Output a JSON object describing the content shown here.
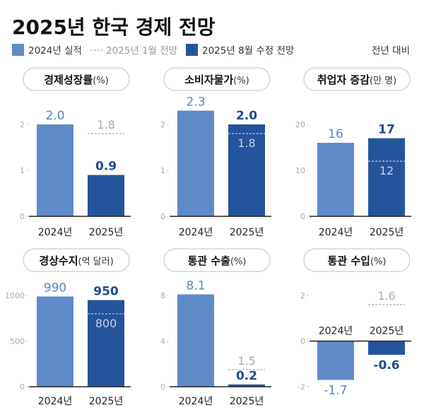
{
  "title": "2025년 한국 경제 전망",
  "legend": {
    "actual": "2024년 실적",
    "jan_forecast": "2025년 1월 전망",
    "aug_forecast": "2025년 8월 수정 전망",
    "note": "전년 대비"
  },
  "colors": {
    "actual": "#5f8bc8",
    "revised": "#24549b",
    "actual_label": "#5b84c0",
    "revised_label": "#1f4a8c",
    "forecast": "#a9a9a9",
    "axis": "#222222"
  },
  "chart_data": [
    {
      "type": "bar",
      "title": "경제성장률",
      "unit": "(%)",
      "categories": [
        "2024년",
        "2025년"
      ],
      "values": [
        2.0,
        0.9
      ],
      "jan_forecast": 1.8,
      "value_labels": [
        "2.0",
        "0.9"
      ],
      "forecast_label": "1.8",
      "ylim": [
        0,
        2
      ],
      "ticks": [
        0,
        1,
        2
      ],
      "tick_labels": [
        "0",
        "1",
        "2"
      ]
    },
    {
      "type": "bar",
      "title": "소비자물가",
      "unit": "(%)",
      "categories": [
        "2024년",
        "2025년"
      ],
      "values": [
        2.3,
        2.0
      ],
      "jan_forecast": 1.8,
      "value_labels": [
        "2.3",
        "2.0"
      ],
      "forecast_label": "1.8",
      "ylim": [
        0,
        2
      ],
      "ticks": [
        0,
        1,
        2
      ],
      "tick_labels": [
        "0",
        "1",
        "2"
      ]
    },
    {
      "type": "bar",
      "title": "취업자 증감",
      "unit": "(만 명)",
      "categories": [
        "2024년",
        "2025년"
      ],
      "values": [
        16,
        17
      ],
      "jan_forecast": 12,
      "value_labels": [
        "16",
        "17"
      ],
      "forecast_label": "12",
      "ylim": [
        0,
        20
      ],
      "ticks": [
        0,
        10,
        20
      ],
      "tick_labels": [
        "0",
        "10",
        "20"
      ]
    },
    {
      "type": "bar",
      "title": "경상수지",
      "unit": "(억 달러)",
      "categories": [
        "2024년",
        "2025년"
      ],
      "values": [
        990,
        950
      ],
      "jan_forecast": 800,
      "value_labels": [
        "990",
        "950"
      ],
      "forecast_label": "800",
      "ylim": [
        0,
        1000
      ],
      "ticks": [
        0,
        500,
        1000
      ],
      "tick_labels": [
        "0",
        "500",
        "1000"
      ]
    },
    {
      "type": "bar",
      "title": "통관 수출",
      "unit": "(%)",
      "categories": [
        "2024년",
        "2025년"
      ],
      "values": [
        8.1,
        0.2
      ],
      "jan_forecast": 1.5,
      "value_labels": [
        "8.1",
        "0.2"
      ],
      "forecast_label": "1.5",
      "ylim": [
        0,
        8
      ],
      "ticks": [
        0,
        4,
        8
      ],
      "tick_labels": [
        "0",
        "4",
        "8"
      ]
    },
    {
      "type": "bar",
      "title": "통관 수입",
      "unit": "(%)",
      "categories": [
        "2024년",
        "2025년"
      ],
      "values": [
        -1.7,
        -0.6
      ],
      "jan_forecast": 1.6,
      "value_labels": [
        "-1.7",
        "-0.6"
      ],
      "forecast_label": "1.6",
      "ylim": [
        -2,
        2
      ],
      "ticks": [
        -2,
        0,
        2
      ],
      "tick_labels": [
        "-2",
        "0",
        "2"
      ]
    }
  ]
}
